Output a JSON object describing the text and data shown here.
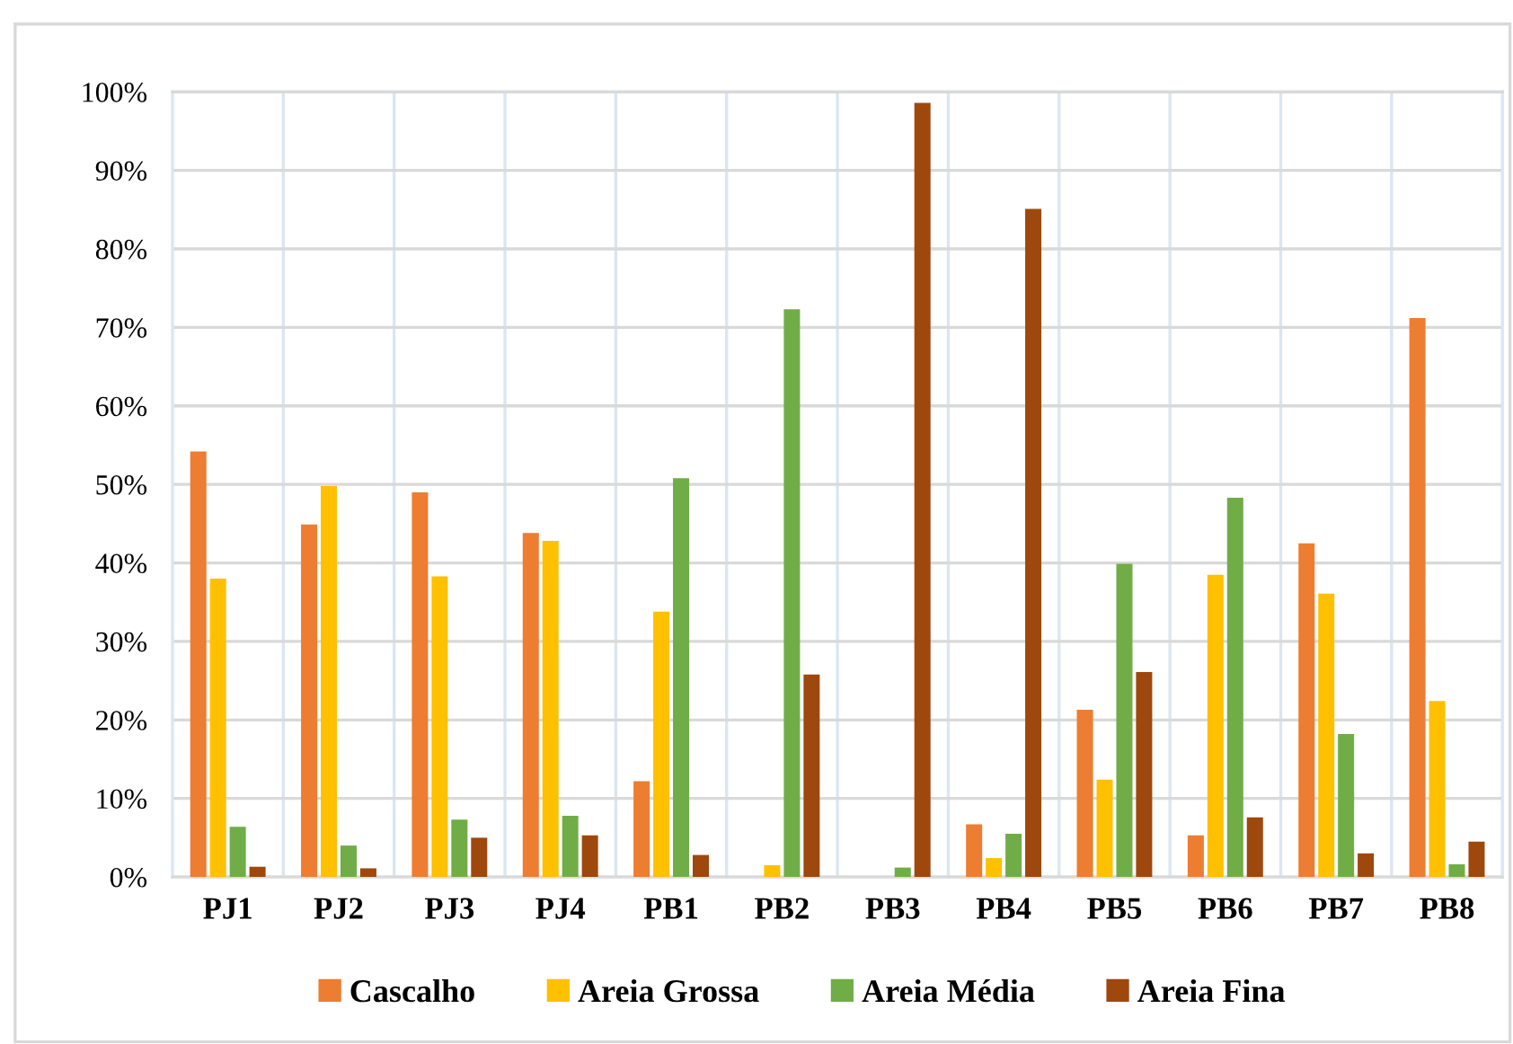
{
  "chart_data": {
    "type": "bar",
    "categories": [
      "PJ1",
      "PJ2",
      "PJ3",
      "PJ4",
      "PB1",
      "PB2",
      "PB3",
      "PB4",
      "PB5",
      "PB6",
      "PB7",
      "PB8"
    ],
    "series": [
      {
        "name": "Cascalho",
        "color": "#ed7d31",
        "values": [
          54.2,
          44.9,
          49.0,
          43.8,
          12.2,
          0,
          0,
          6.7,
          21.3,
          5.3,
          42.5,
          71.2
        ]
      },
      {
        "name": "Areia Grossa",
        "color": "#ffc000",
        "values": [
          38.0,
          49.8,
          38.3,
          42.8,
          33.8,
          1.5,
          0,
          2.4,
          12.4,
          38.5,
          36.1,
          22.4
        ]
      },
      {
        "name": "Areia Média",
        "color": "#70ad47",
        "values": [
          6.4,
          4.0,
          7.3,
          7.8,
          50.8,
          72.3,
          1.2,
          5.5,
          39.9,
          48.3,
          18.2,
          1.6
        ]
      },
      {
        "name": "Areia Fina",
        "color": "#9e480e",
        "values": [
          1.3,
          1.1,
          5.0,
          5.3,
          2.8,
          25.8,
          98.6,
          85.1,
          26.1,
          7.6,
          3.0,
          4.5
        ]
      }
    ],
    "ylim": [
      0,
      100
    ],
    "yticks": [
      {
        "value": 0,
        "label": "0%"
      },
      {
        "value": 10,
        "label": "10%"
      },
      {
        "value": 20,
        "label": "20%"
      },
      {
        "value": 30,
        "label": "30%"
      },
      {
        "value": 40,
        "label": "40%"
      },
      {
        "value": 50,
        "label": "50%"
      },
      {
        "value": 60,
        "label": "60%"
      },
      {
        "value": 70,
        "label": "70%"
      },
      {
        "value": 80,
        "label": "80%"
      },
      {
        "value": 90,
        "label": "90%"
      },
      {
        "value": 100,
        "label": "100%"
      }
    ],
    "grid": true,
    "legend": "bottom"
  }
}
